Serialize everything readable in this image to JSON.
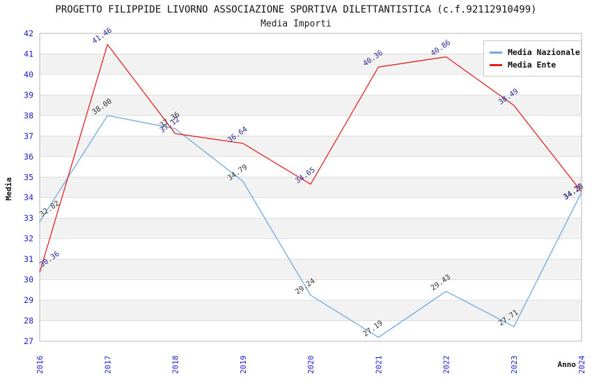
{
  "chart_data": {
    "type": "line",
    "title": "PROGETTO FILIPPIDE LIVORNO ASSOCIAZIONE SPORTIVA DILETTANTISTICA (c.f.92112910499)",
    "subtitle": "Media Importi",
    "xlabel": "Anno",
    "ylabel": "Media",
    "x": [
      "2016",
      "2017",
      "2018",
      "2019",
      "2020",
      "2021",
      "2022",
      "2023",
      "2024"
    ],
    "series": [
      {
        "name": "Media Nazionale",
        "color": "#6fa8e0",
        "label_color": "#333333",
        "values": [
          32.82,
          38.0,
          37.36,
          34.79,
          29.24,
          27.19,
          29.43,
          27.71,
          34.26
        ]
      },
      {
        "name": "Media Ente",
        "color": "#e02222",
        "label_color": "#2a2a99",
        "values": [
          30.36,
          41.46,
          37.12,
          36.64,
          34.65,
          40.36,
          40.86,
          38.49,
          34.28
        ]
      }
    ],
    "ylim": [
      27,
      42
    ],
    "y_ticks": [
      27,
      28,
      29,
      30,
      31,
      32,
      33,
      34,
      35,
      36,
      37,
      38,
      39,
      40,
      41,
      42
    ],
    "grid": "horizontal-bands",
    "legend_position": "top-right",
    "axis_tick_color": "#1a1acc",
    "band_color": "#f2f2f2",
    "gridline_color": "#dddddd",
    "plot_border_color": "#b4b4b4",
    "axis_title_color": "#111111"
  }
}
